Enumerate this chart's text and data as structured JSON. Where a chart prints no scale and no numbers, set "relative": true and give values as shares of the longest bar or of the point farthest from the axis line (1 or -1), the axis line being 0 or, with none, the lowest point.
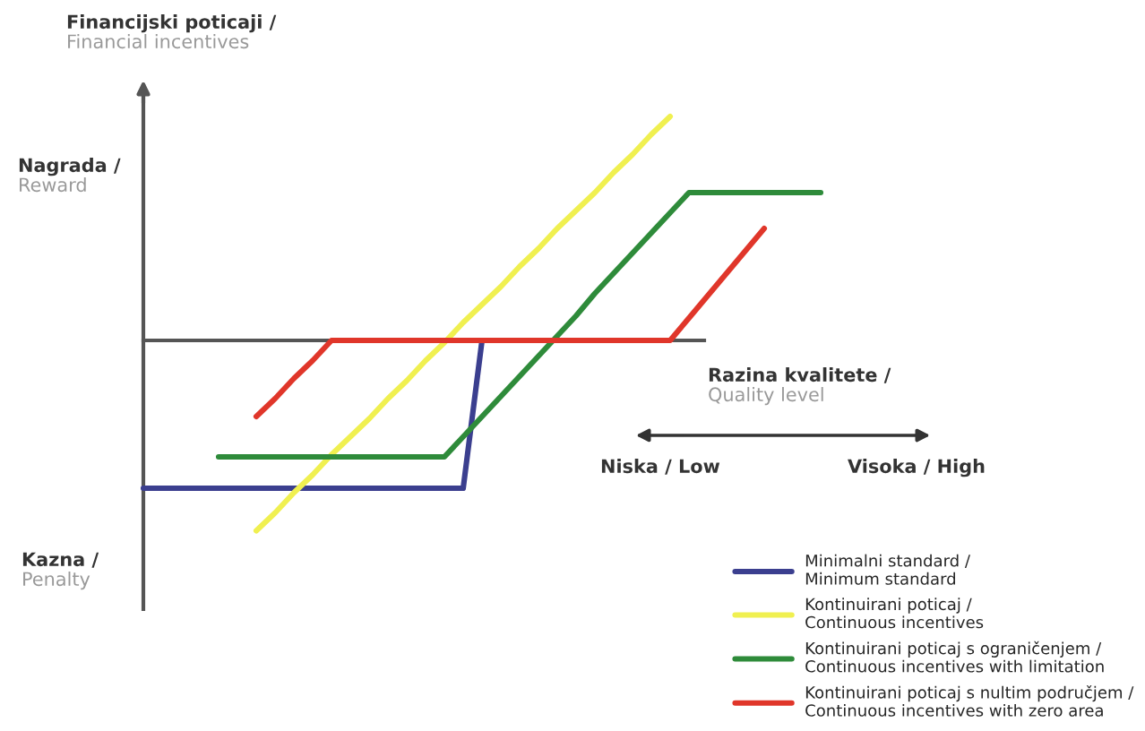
{
  "chart_data": {
    "type": "line",
    "relative": true,
    "ylabel": "Financijski poticaji /\nFinancial incentives",
    "xlabel": "Razina kvalitete /\nQuality level",
    "annotations": [
      "Nagrada /\nReward",
      "Kazna /\nPenalty",
      "Niska / Low",
      "Visoka / High"
    ],
    "legend": "bottom right",
    "marker": "none",
    "line_style": "solid",
    "categories": [
      null,
      null,
      null,
      null,
      null,
      null,
      null,
      null,
      null,
      null,
      null,
      null,
      null,
      null,
      null,
      null,
      null,
      null,
      null,
      null,
      null,
      null,
      null,
      null,
      null,
      null,
      null,
      null,
      null,
      null,
      null,
      null,
      null,
      null,
      null,
      null,
      null
    ],
    "series": [
      {
        "name": "Minimalni standard /\nMinimum standard",
        "color": "#3b3f8f",
        "values": [
          -0.66,
          -0.66,
          -0.66,
          -0.66,
          -0.66,
          -0.66,
          -0.66,
          -0.66,
          -0.66,
          -0.66,
          -0.66,
          -0.66,
          -0.66,
          -0.66,
          -0.66,
          -0.66,
          -0.66,
          -0.66,
          0,
          null,
          null,
          null,
          null,
          null,
          null,
          null,
          null,
          null,
          null,
          null,
          null,
          null,
          null,
          null,
          null,
          null,
          null
        ]
      },
      {
        "name": "Kontinuirani poticaj /\nContinuous incentives",
        "color": "#f0f050",
        "values": [
          null,
          null,
          null,
          null,
          null,
          null,
          -0.85,
          -0.77,
          -0.68,
          -0.6,
          -0.51,
          -0.43,
          -0.35,
          -0.26,
          -0.18,
          -0.09,
          -0.01,
          0.08,
          0.16,
          0.24,
          0.33,
          0.41,
          0.5,
          0.58,
          0.66,
          0.75,
          0.83,
          0.92,
          1.0,
          null,
          null,
          null,
          null,
          null,
          null,
          null,
          null
        ]
      },
      {
        "name": "Kontinuirani poticaj s ograničenjem /\nContinuous incentives with limitation",
        "color": "#2e8b3a",
        "values": [
          null,
          null,
          null,
          null,
          -0.52,
          -0.52,
          -0.52,
          -0.52,
          -0.52,
          -0.52,
          -0.52,
          -0.52,
          -0.52,
          -0.52,
          -0.52,
          -0.52,
          -0.52,
          -0.43,
          -0.34,
          -0.25,
          -0.16,
          -0.07,
          0.02,
          0.11,
          0.21,
          0.3,
          0.39,
          0.48,
          0.57,
          0.66,
          0.66,
          0.66,
          0.66,
          0.66,
          0.66,
          0.66,
          0.66
        ]
      },
      {
        "name": "Kontinuirani poticaj s nultim područjem /\nContinuous incentives with zero area",
        "color": "#e0362a",
        "values": [
          null,
          null,
          null,
          null,
          null,
          null,
          -0.34,
          -0.26,
          -0.17,
          -0.09,
          0,
          0,
          0,
          0,
          0,
          0,
          0,
          0,
          0,
          0,
          0,
          0,
          0,
          0,
          0,
          0,
          0,
          0,
          0,
          0.1,
          0.2,
          0.3,
          0.4,
          0.5,
          null,
          null,
          null
        ]
      }
    ]
  }
}
